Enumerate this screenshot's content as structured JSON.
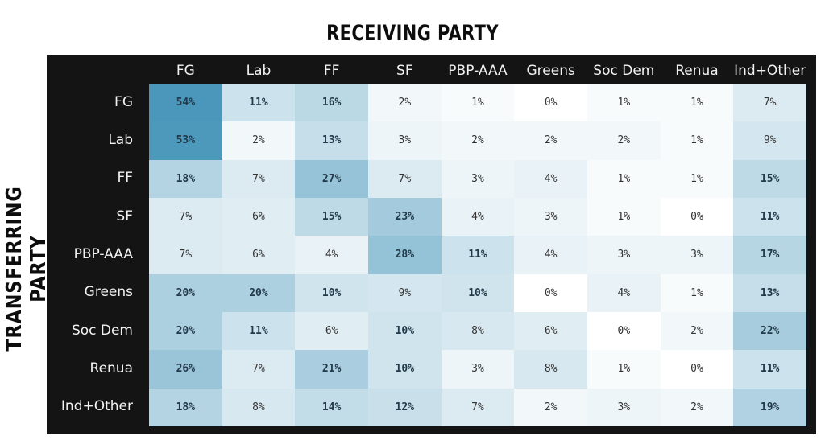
{
  "chart_data": {
    "type": "heatmap",
    "title": "RECEIVING PARTY",
    "ylabel": "TRANSFERRING PARTY",
    "columns": [
      "FG",
      "Lab",
      "FF",
      "SF",
      "PBP-AAA",
      "Greens",
      "Soc Dem",
      "Renua",
      "Ind+Other"
    ],
    "rows": [
      "FG",
      "Lab",
      "FF",
      "SF",
      "PBP-AAA",
      "Greens",
      "Soc Dem",
      "Renua",
      "Ind+Other"
    ],
    "values": [
      [
        54,
        11,
        16,
        2,
        1,
        0,
        1,
        1,
        7
      ],
      [
        53,
        2,
        13,
        3,
        2,
        2,
        2,
        1,
        9
      ],
      [
        18,
        7,
        27,
        7,
        3,
        4,
        1,
        1,
        15
      ],
      [
        7,
        6,
        15,
        23,
        4,
        3,
        1,
        0,
        11
      ],
      [
        7,
        6,
        4,
        28,
        11,
        4,
        3,
        3,
        17
      ],
      [
        20,
        20,
        10,
        9,
        10,
        0,
        4,
        1,
        13
      ],
      [
        20,
        11,
        6,
        10,
        8,
        6,
        0,
        2,
        22
      ],
      [
        26,
        7,
        21,
        10,
        3,
        8,
        1,
        0,
        11
      ],
      [
        18,
        8,
        14,
        12,
        7,
        2,
        3,
        2,
        19
      ]
    ],
    "unit": "%",
    "color_scale": {
      "low": "#ffffff",
      "high": "#4a97bb"
    }
  }
}
